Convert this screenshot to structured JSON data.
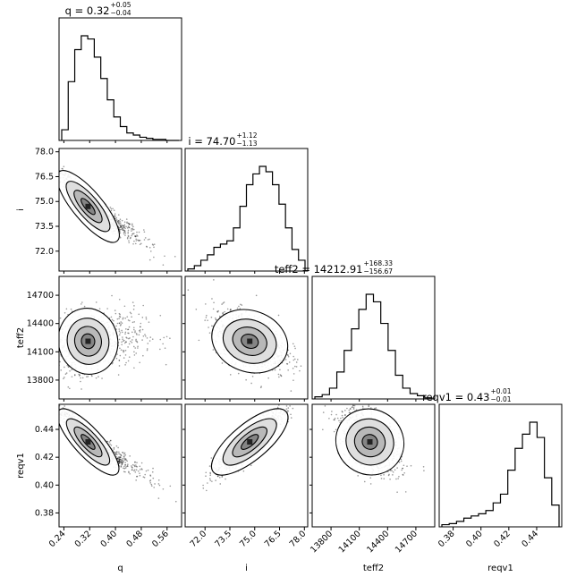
{
  "chart_data": {
    "type": "corner",
    "params": [
      "q",
      "i",
      "teff2",
      "reqv1"
    ],
    "titles": [
      {
        "label": "q",
        "median": "0.32",
        "plus": "0.05",
        "minus": "0.04"
      },
      {
        "label": "i",
        "median": "74.70",
        "plus": "1.12",
        "minus": "1.13"
      },
      {
        "label": "teff2",
        "median": "14212.91",
        "plus": "168.33",
        "minus": "156.67"
      },
      {
        "label": "reqv1",
        "median": "0.43",
        "plus": "0.01",
        "minus": "0.01"
      }
    ],
    "axis_labels": [
      "q",
      "i",
      "teff2",
      "reqv1"
    ],
    "ranges": [
      [
        0.225,
        0.605
      ],
      [
        70.8,
        78.2
      ],
      [
        13600,
        14900
      ],
      [
        0.37,
        0.458
      ]
    ],
    "ticks": [
      [
        "0.24",
        "0.32",
        "0.40",
        "0.48",
        "0.56"
      ],
      [
        "72.0",
        "73.5",
        "75.0",
        "76.5",
        "78.0"
      ],
      [
        "13800",
        "14100",
        "14400",
        "14700"
      ],
      [
        "0.38",
        "0.40",
        "0.42",
        "0.44"
      ]
    ],
    "histograms": [
      {
        "param": "q",
        "counts": [
          10,
          55,
          85,
          98,
          95,
          78,
          58,
          38,
          22,
          13,
          7,
          5,
          3,
          2,
          1,
          1,
          0,
          0
        ]
      },
      {
        "param": "i",
        "counts": [
          2,
          5,
          10,
          15,
          22,
          25,
          28,
          40,
          60,
          80,
          90,
          97,
          92,
          80,
          62,
          40,
          20,
          10
        ]
      },
      {
        "param": "teff2",
        "counts": [
          2,
          4,
          10,
          25,
          45,
          65,
          83,
          97,
          90,
          70,
          45,
          22,
          10,
          5,
          3,
          1
        ]
      },
      {
        "param": "reqv1",
        "counts": [
          2,
          3,
          5,
          8,
          10,
          12,
          15,
          22,
          30,
          52,
          72,
          85,
          96,
          82,
          45,
          20
        ]
      }
    ],
    "correlations": [
      {
        "row": "i",
        "col": "q",
        "trend": "negative",
        "rho": -0.95
      },
      {
        "row": "teff2",
        "col": "q",
        "trend": "weak positive",
        "rho": 0.2
      },
      {
        "row": "teff2",
        "col": "i",
        "trend": "negative",
        "rho": -0.45
      },
      {
        "row": "reqv1",
        "col": "q",
        "trend": "negative",
        "rho": -0.95
      },
      {
        "row": "reqv1",
        "col": "i",
        "trend": "positive",
        "rho": 0.9
      },
      {
        "row": "reqv1",
        "col": "teff2",
        "trend": "negative",
        "rho": -0.5
      }
    ]
  }
}
